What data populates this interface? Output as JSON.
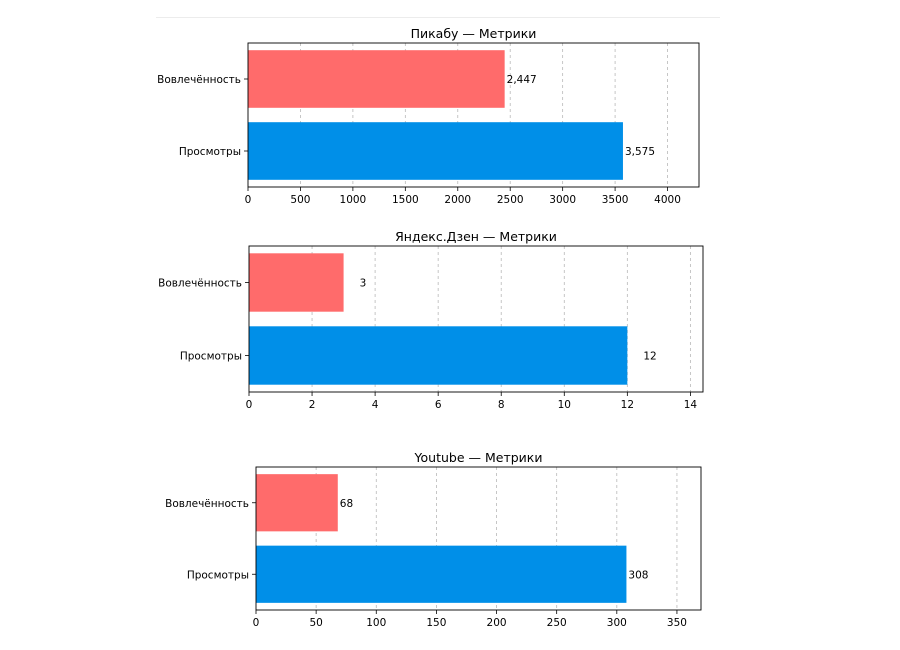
{
  "chart_data": [
    {
      "type": "bar",
      "orientation": "horizontal",
      "title": "Пикабу — Метрики",
      "categories": [
        "Вовлечённость",
        "Просмотры"
      ],
      "values": [
        2447,
        3575
      ],
      "value_labels": [
        "2,447",
        "3,575"
      ],
      "colors": [
        "#ff6b6b",
        "#008fe8"
      ],
      "xlim": [
        0,
        4300
      ],
      "xticks": [
        0,
        500,
        1000,
        1500,
        2000,
        2500,
        3000,
        3500,
        4000
      ],
      "xlabel": "",
      "ylabel": "",
      "grid": "x-dashed"
    },
    {
      "type": "bar",
      "orientation": "horizontal",
      "title": "Яндекс.Дзен — Метрики",
      "categories": [
        "Вовлечённость",
        "Просмотры"
      ],
      "values": [
        3,
        12
      ],
      "value_labels": [
        "3",
        "12"
      ],
      "colors": [
        "#ff6b6b",
        "#008fe8"
      ],
      "xlim": [
        0,
        14.4
      ],
      "xticks": [
        0,
        2,
        4,
        6,
        8,
        10,
        12,
        14
      ],
      "xlabel": "",
      "ylabel": "",
      "grid": "x-dashed"
    },
    {
      "type": "bar",
      "orientation": "horizontal",
      "title": "Youtube — Метрики",
      "categories": [
        "Вовлечённость",
        "Просмотры"
      ],
      "values": [
        68,
        308
      ],
      "value_labels": [
        "68",
        "308"
      ],
      "colors": [
        "#ff6b6b",
        "#008fe8"
      ],
      "xlim": [
        0,
        370
      ],
      "xticks": [
        0,
        50,
        100,
        150,
        200,
        250,
        300,
        350
      ],
      "xlabel": "",
      "ylabel": "",
      "grid": "x-dashed"
    }
  ]
}
